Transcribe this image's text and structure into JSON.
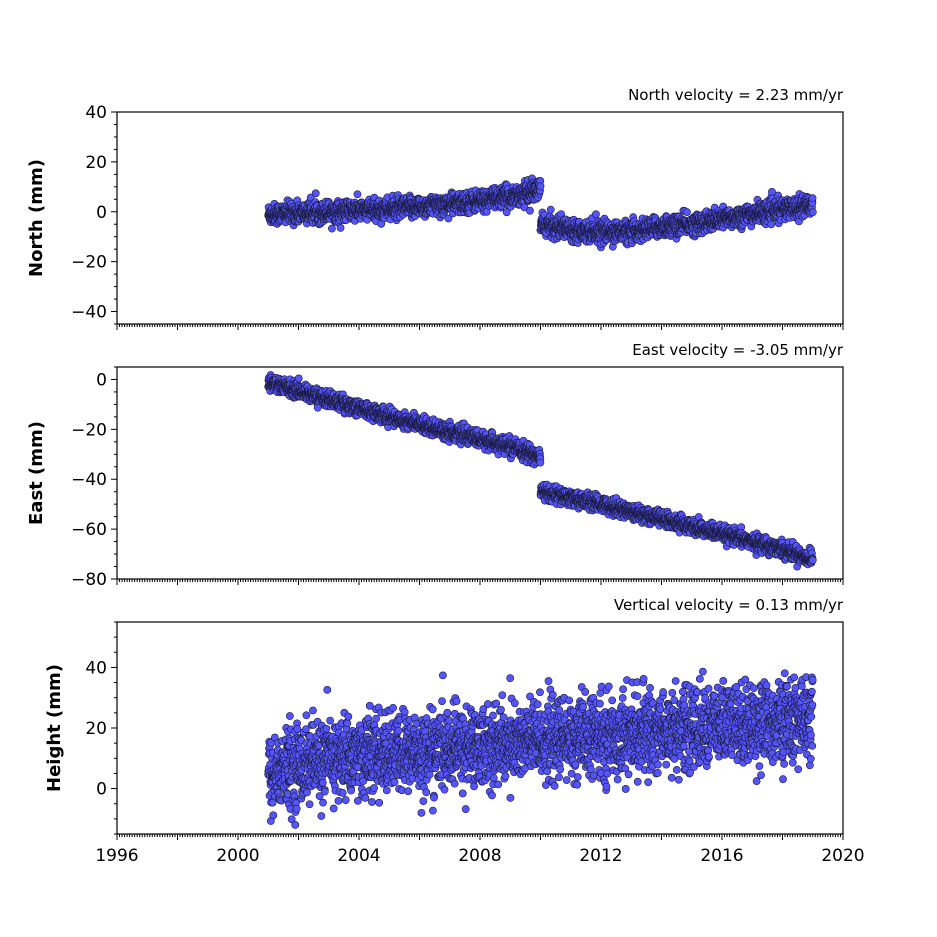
{
  "colors": {
    "marker_fill": "#5555ff",
    "marker_edge": "#1a1a3a",
    "axes": "#000000"
  },
  "chart_data": [
    {
      "type": "scatter",
      "title": "North velocity = 2.23 mm/yr",
      "ylabel": "North (mm)",
      "xlim": [
        1996,
        2020
      ],
      "ylim": [
        -45,
        40
      ],
      "yticks": [
        40,
        20,
        0,
        -20,
        -40
      ],
      "ytick_labels": [
        "40",
        "20",
        "0",
        "−20",
        "−40"
      ],
      "xticks": [
        1996,
        1998,
        2000,
        2002,
        2004,
        2006,
        2008,
        2010,
        2012,
        2014,
        2016,
        2018,
        2020
      ],
      "show_xtick_labels": false,
      "series": [
        {
          "x": [
            2001.0,
            2003.0,
            2005.0,
            2007.0,
            2009.0,
            2010.0
          ],
          "y": [
            -1,
            0,
            1,
            3,
            6,
            9
          ]
        },
        {
          "x": [
            2010.0,
            2011.0,
            2012.0,
            2013.0,
            2014.0,
            2015.0,
            2016.0,
            2017.0,
            2018.0,
            2019.0
          ],
          "y": [
            -5,
            -7,
            -8,
            -8,
            -6,
            -5,
            -3,
            -1,
            1,
            3
          ]
        }
      ],
      "scatter_sd": 2.0,
      "x_range_observed": [
        2001.0,
        2019.0
      ]
    },
    {
      "type": "scatter",
      "title": "East velocity = -3.05 mm/yr",
      "ylabel": "East (mm)",
      "xlim": [
        1996,
        2020
      ],
      "ylim": [
        -80,
        5
      ],
      "yticks": [
        0,
        -20,
        -40,
        -60,
        -80
      ],
      "ytick_labels": [
        "0",
        "−20",
        "−40",
        "−60",
        "−80"
      ],
      "xticks": [
        1996,
        1998,
        2000,
        2002,
        2004,
        2006,
        2008,
        2010,
        2012,
        2014,
        2016,
        2018,
        2020
      ],
      "show_xtick_labels": false,
      "series": [
        {
          "x": [
            2001.0,
            2003.0,
            2005.0,
            2007.0,
            2009.0,
            2010.0
          ],
          "y": [
            -1,
            -8,
            -15,
            -21,
            -27,
            -31
          ]
        },
        {
          "x": [
            2010.0,
            2012.0,
            2014.0,
            2016.0,
            2018.0,
            2019.0
          ],
          "y": [
            -45,
            -50,
            -56,
            -62,
            -68,
            -72
          ]
        }
      ],
      "scatter_sd": 1.5,
      "x_range_observed": [
        2001.0,
        2019.0
      ]
    },
    {
      "type": "scatter",
      "title": "Vertical velocity = 0.13 mm/yr",
      "ylabel": "Height (mm)",
      "xlim": [
        1996,
        2020
      ],
      "ylim": [
        -15,
        55
      ],
      "yticks": [
        40,
        20,
        0
      ],
      "ytick_labels": [
        "40",
        "20",
        "0"
      ],
      "xticks": [
        1996,
        1998,
        2000,
        2002,
        2004,
        2006,
        2008,
        2010,
        2012,
        2014,
        2016,
        2018,
        2020
      ],
      "xtick_labels": [
        "1996",
        "",
        "2000",
        "",
        "2004",
        "",
        "2008",
        "",
        "2012",
        "",
        "2016",
        "",
        "2020"
      ],
      "show_xtick_labels": true,
      "series": [
        {
          "x": [
            2001.0,
            2002.0,
            2004.0,
            2006.0,
            2008.0,
            2010.0,
            2012.0,
            2014.0,
            2016.0,
            2018.0,
            2019.0
          ],
          "y": [
            4,
            8,
            11,
            12,
            14,
            16,
            17,
            19,
            21,
            22,
            23
          ]
        }
      ],
      "scatter_sd": 6.5,
      "x_range_observed": [
        2001.0,
        2019.0
      ]
    }
  ]
}
